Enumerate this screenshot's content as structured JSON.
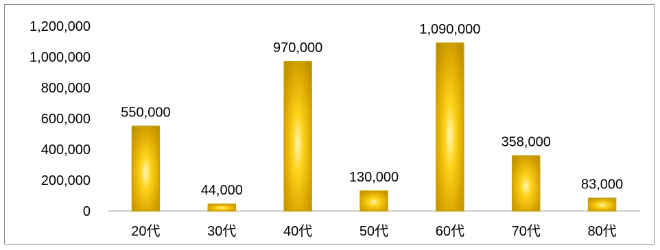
{
  "chart_data": {
    "type": "bar",
    "categories": [
      "20代",
      "30代",
      "40代",
      "50代",
      "60代",
      "70代",
      "80代"
    ],
    "values": [
      550000,
      44000,
      970000,
      130000,
      1090000,
      358000,
      83000
    ],
    "data_labels": [
      "550,000",
      "44,000",
      "970,000",
      "130,000",
      "1,090,000",
      "358,000",
      "83,000"
    ],
    "title": "",
    "xlabel": "",
    "ylabel": "",
    "ylim": [
      0,
      1200000
    ],
    "yticks": [
      0,
      200000,
      400000,
      600000,
      800000,
      1000000,
      1200000
    ],
    "ytick_labels": [
      "0",
      "200,000",
      "400,000",
      "600,000",
      "800,000",
      "1,000,000",
      "1,200,000"
    ],
    "grid": false,
    "legend": "none",
    "colors": {
      "bar_edge": "#c8a100",
      "bar_dark": "#b48a00",
      "bar_mid": "#e6b800",
      "bar_light": "#fff2a6",
      "axis": "#bfbfbf"
    }
  }
}
